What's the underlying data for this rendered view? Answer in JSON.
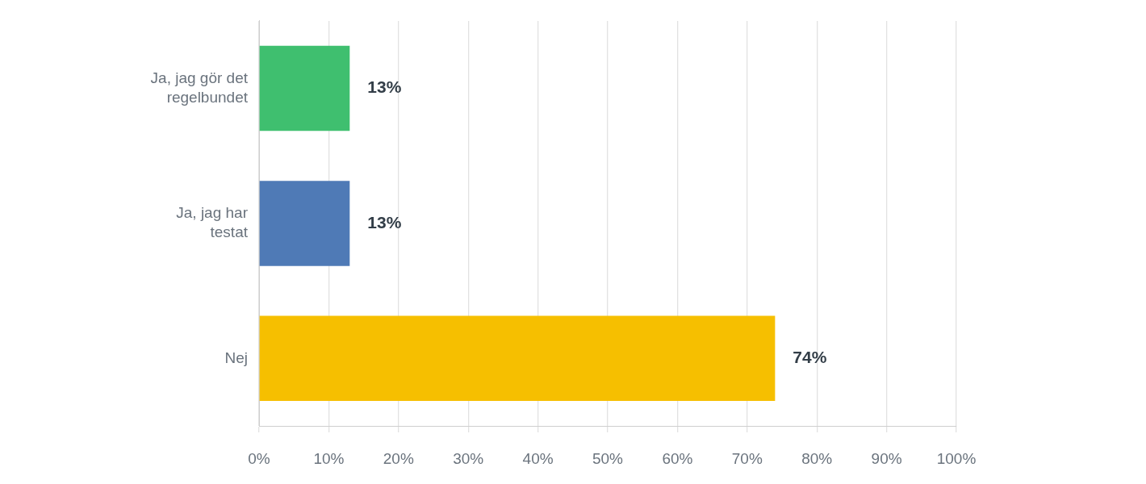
{
  "chart_data": {
    "type": "bar",
    "orientation": "horizontal",
    "categories": [
      "Ja, jag gör det regelbundet",
      "Ja, jag har testat",
      "Nej"
    ],
    "values": [
      13,
      13,
      74
    ],
    "colors": [
      "#3fbf6f",
      "#4f7ab6",
      "#f6bf00"
    ],
    "value_labels": [
      "13%",
      "13%",
      "74%"
    ],
    "xlim": [
      0,
      100
    ],
    "xticks": [
      {
        "value": 0,
        "label": "0%"
      },
      {
        "value": 10,
        "label": "10%"
      },
      {
        "value": 20,
        "label": "20%"
      },
      {
        "value": 30,
        "label": "30%"
      },
      {
        "value": 40,
        "label": "40%"
      },
      {
        "value": 50,
        "label": "50%"
      },
      {
        "value": 60,
        "label": "60%"
      },
      {
        "value": 70,
        "label": "70%"
      },
      {
        "value": 80,
        "label": "80%"
      },
      {
        "value": 90,
        "label": "90%"
      },
      {
        "value": 100,
        "label": "100%"
      }
    ],
    "grid": "x",
    "legend": false
  }
}
